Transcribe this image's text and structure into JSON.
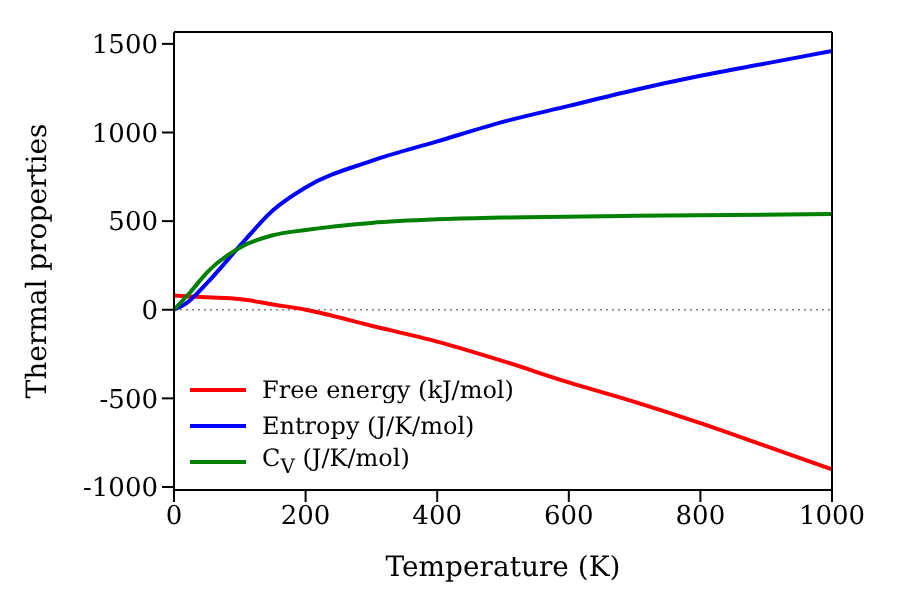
{
  "chart_data": {
    "type": "line",
    "xlabel": "Temperature (K)",
    "ylabel": "Thermal properties",
    "xlim": [
      0,
      1000
    ],
    "xticks": [
      0,
      200,
      400,
      600,
      800,
      1000
    ],
    "ylim": [
      -1017,
      1567
    ],
    "yticks": [
      -1000,
      -500,
      0,
      500,
      1000,
      1500
    ],
    "series": [
      {
        "name": "Free energy (kJ/mol)",
        "color": "#ff0000",
        "x": [
          0,
          50,
          100,
          150,
          200,
          300,
          400,
          500,
          600,
          700,
          800,
          900,
          1000
        ],
        "values": [
          80,
          70,
          60,
          30,
          0,
          -90,
          -180,
          -290,
          -410,
          -520,
          -640,
          -770,
          -900
        ]
      },
      {
        "name": "Entropy (J/K/mol)",
        "color": "#0000ff",
        "x": [
          0,
          20,
          50,
          100,
          150,
          200,
          300,
          400,
          500,
          600,
          700,
          800,
          900,
          1000
        ],
        "values": [
          0,
          40,
          150,
          360,
          560,
          690,
          840,
          950,
          1060,
          1150,
          1240,
          1320,
          1390,
          1460
        ]
      },
      {
        "name": "C$_{V}$ (J/K/mol)",
        "color": "#008000",
        "x": [
          0,
          25,
          50,
          100,
          150,
          200,
          300,
          400,
          500,
          700,
          1000
        ],
        "values": [
          0,
          100,
          210,
          350,
          420,
          450,
          490,
          510,
          520,
          530,
          540
        ]
      }
    ],
    "ref_lines": [
      {
        "axis": "y",
        "value": 0,
        "color": "#808080",
        "line_style": "dotted"
      }
    ],
    "legend": "bottom left",
    "grid": false,
    "marker": "none",
    "line_style": "solid"
  }
}
